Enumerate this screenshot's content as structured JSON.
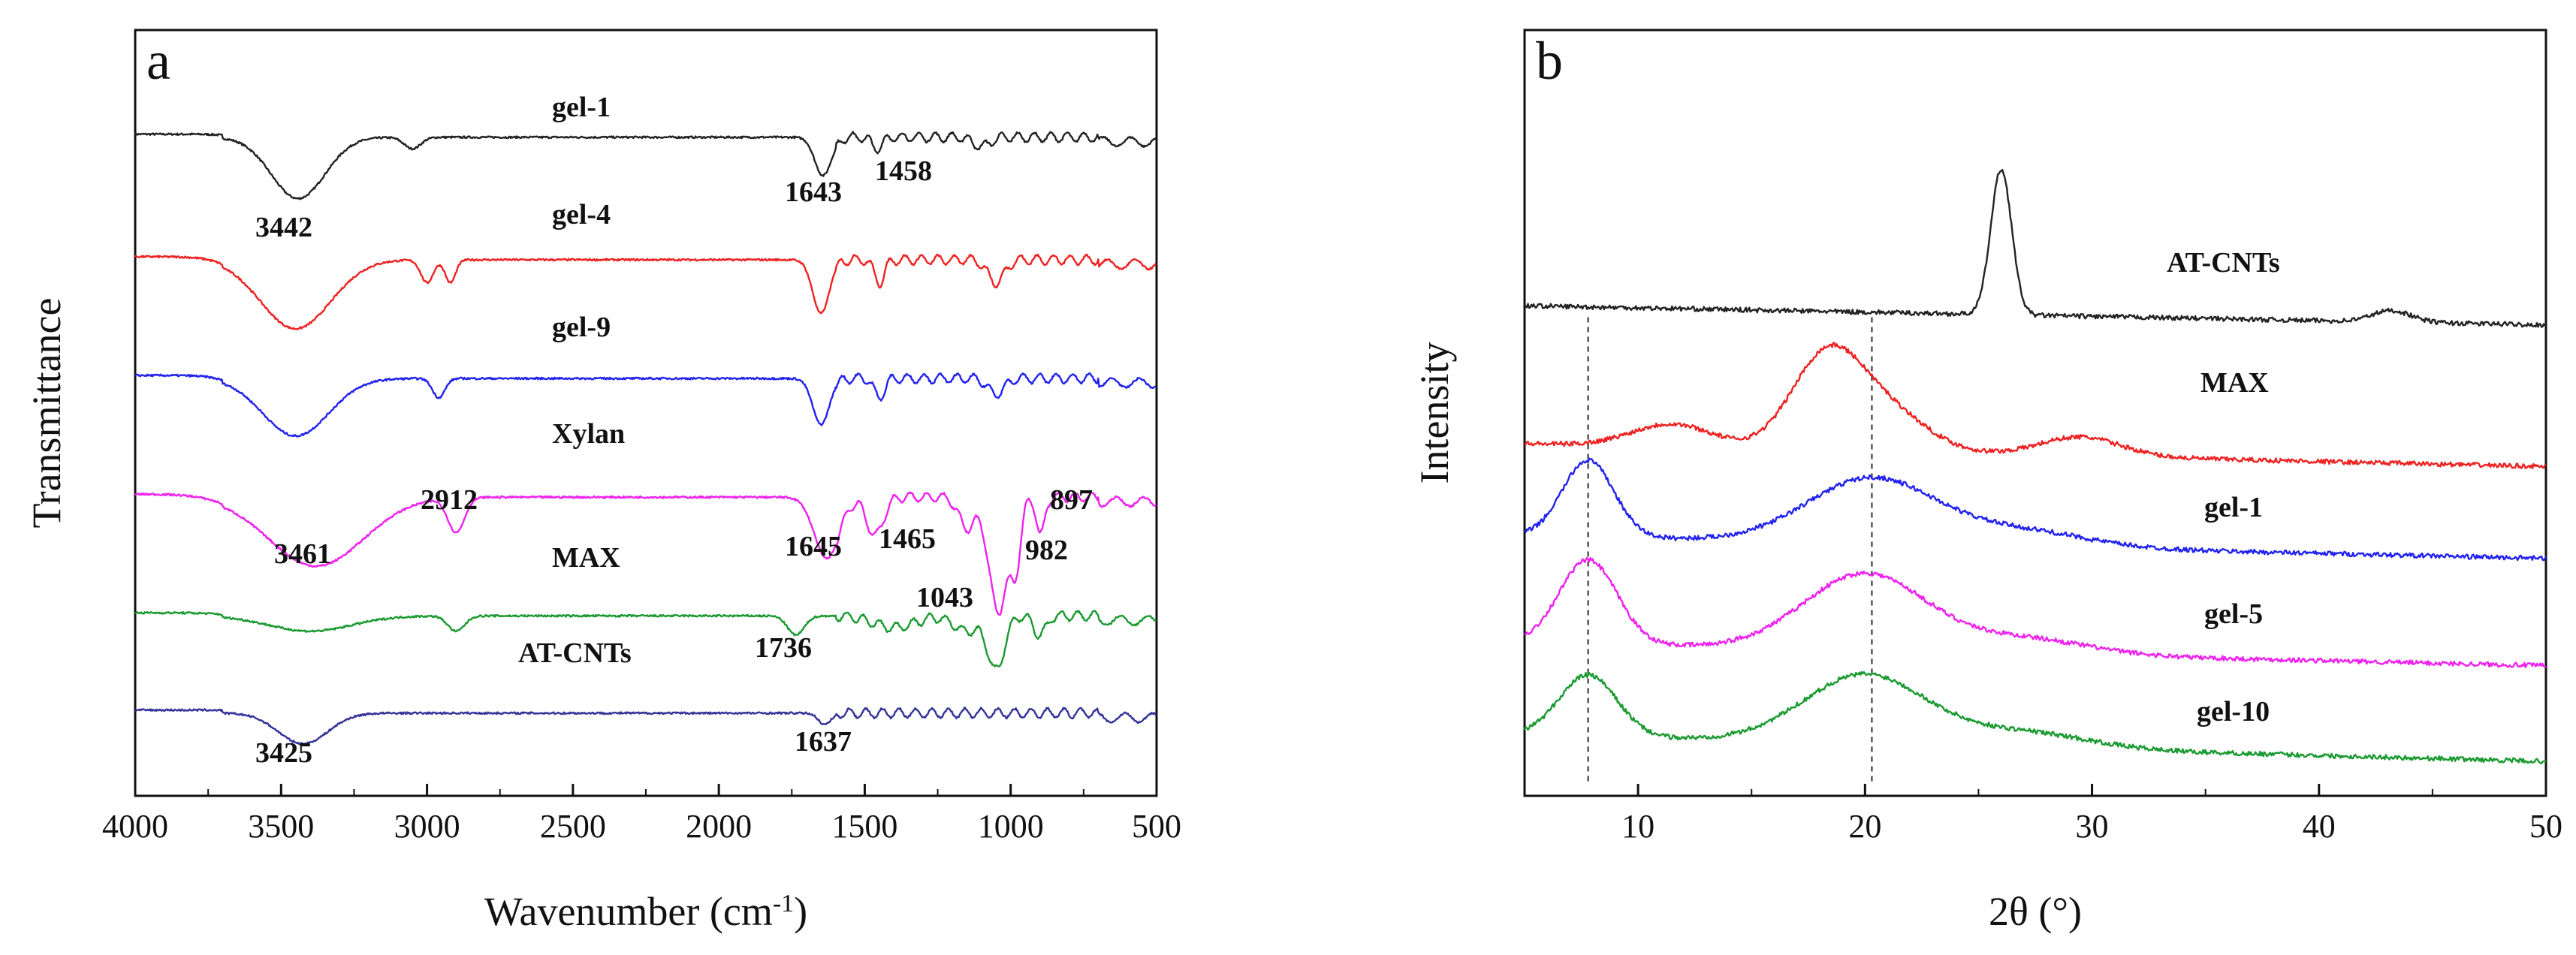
{
  "chart_data": [
    {
      "panel": "a",
      "type": "line",
      "xlabel_main": "Wavenumber (cm",
      "xlabel_sup": "-1",
      "xlabel_close": ")",
      "ylabel": "Transmittance",
      "xlim": [
        4000,
        500
      ],
      "xticks": [
        "4000",
        "3500",
        "3000",
        "2500",
        "2000",
        "1500",
        "1000",
        "500"
      ],
      "xtick_values": [
        4000,
        3500,
        3000,
        2500,
        2000,
        1500,
        1000,
        500
      ],
      "series": [
        {
          "name": "gel-1",
          "color": "#222222",
          "offset": 0.86,
          "peaks": [
            [
              3442,
              0.08,
              130
            ],
            [
              3050,
              0.015,
              40
            ],
            [
              1643,
              0.05,
              40
            ],
            [
              1458,
              0.015,
              25
            ],
            [
              1100,
              0.012,
              40
            ]
          ],
          "edge": [
            3700,
            0.0
          ]
        },
        {
          "name": "gel-4",
          "color": "#ee2222",
          "offset": 0.7,
          "peaks": [
            [
              3450,
              0.09,
              170
            ],
            [
              3000,
              0.03,
              30
            ],
            [
              2920,
              0.03,
              25
            ],
            [
              1650,
              0.07,
              40
            ],
            [
              1450,
              0.03,
              25
            ],
            [
              1050,
              0.03,
              40
            ]
          ],
          "edge": [
            3700,
            0.0
          ]
        },
        {
          "name": "gel-9",
          "color": "#2222ee",
          "offset": 0.545,
          "peaks": [
            [
              3450,
              0.075,
              160
            ],
            [
              2960,
              0.025,
              30
            ],
            [
              1650,
              0.06,
              40
            ],
            [
              1450,
              0.025,
              25
            ],
            [
              1050,
              0.02,
              40
            ]
          ],
          "edge": [
            3700,
            0.0
          ]
        },
        {
          "name": "Xylan",
          "color": "#ee22ee",
          "offset": 0.39,
          "peaks": [
            [
              3380,
              0.09,
              230
            ],
            [
              2900,
              0.045,
              40
            ],
            [
              1630,
              0.08,
              60
            ],
            [
              1465,
              0.05,
              40
            ],
            [
              1150,
              0.04,
              40
            ],
            [
              1043,
              0.15,
              45
            ],
            [
              982,
              0.08,
              25
            ],
            [
              897,
              0.05,
              20
            ]
          ],
          "edge": [
            3700,
            0.0
          ]
        },
        {
          "name": "MAX",
          "color": "#1a9a30",
          "offset": 0.235,
          "peaks": [
            [
              3400,
              0.02,
              200
            ],
            [
              2900,
              0.02,
              40
            ],
            [
              1736,
              0.025,
              40
            ],
            [
              1400,
              0.015,
              100
            ],
            [
              1150,
              0.02,
              60
            ],
            [
              1050,
              0.07,
              40
            ],
            [
              900,
              0.025,
              30
            ]
          ],
          "edge": [
            3700,
            0.0
          ]
        },
        {
          "name": "AT-CNTs",
          "color": "#333399",
          "offset": 0.108,
          "peaks": [
            [
              3425,
              0.04,
              120
            ],
            [
              1637,
              0.015,
              30
            ]
          ],
          "edge": [
            3700,
            0.0
          ]
        }
      ],
      "series_labels": [
        "gel-1",
        "gel-4",
        "gel-9",
        "Xylan",
        "MAX",
        "AT-CNTs"
      ],
      "peak_labels": [
        "3442",
        "1643",
        "1458",
        "3461",
        "2912",
        "1645",
        "1465",
        "897",
        "982",
        "1043",
        "1736",
        "3425",
        "1637"
      ]
    },
    {
      "panel": "b",
      "type": "line",
      "xlabel": "2θ (°)",
      "ylabel": "Intensity",
      "xlim": [
        5,
        50
      ],
      "xticks": [
        "10",
        "20",
        "30",
        "40",
        "50"
      ],
      "xtick_values": [
        10,
        20,
        30,
        40,
        50
      ],
      "reference_lines": [
        7.8,
        20.3
      ],
      "series": [
        {
          "name": "AT-CNTs",
          "color": "#222222",
          "base": [
            0.64,
            0.615
          ],
          "peaks": [
            [
              26.0,
              0.19,
              0.65
            ],
            [
              43.2,
              0.015,
              1.2
            ]
          ]
        },
        {
          "name": "MAX",
          "color": "#ee2222",
          "base": [
            0.46,
            0.43
          ],
          "peaks": [
            [
              11.5,
              0.03,
              2.5
            ],
            [
              18.3,
              0.12,
              2.2
            ],
            [
              21.0,
              0.05,
              2.5
            ],
            [
              29.5,
              0.025,
              2.5
            ]
          ]
        },
        {
          "name": "gel-1",
          "color": "#2222ee",
          "base": [
            0.34,
            0.31
          ],
          "peaks": [
            [
              7.8,
              0.1,
              1.6
            ],
            [
              20.3,
              0.085,
              4.0
            ],
            [
              27,
              0.02,
              4
            ]
          ]
        },
        {
          "name": "gel-5",
          "color": "#ee22ee",
          "base": [
            0.2,
            0.17
          ],
          "peaks": [
            [
              7.8,
              0.11,
              1.8
            ],
            [
              20.0,
              0.1,
              3.8
            ],
            [
              27,
              0.02,
              4
            ]
          ]
        },
        {
          "name": "gel-10",
          "color": "#1a9a30",
          "base": [
            0.08,
            0.045
          ],
          "peaks": [
            [
              7.8,
              0.08,
              1.8
            ],
            [
              20.0,
              0.09,
              3.8
            ],
            [
              27,
              0.02,
              4
            ]
          ]
        }
      ],
      "series_labels": [
        "AT-CNTs",
        "MAX",
        "gel-1",
        "gel-5",
        "gel-10"
      ]
    }
  ]
}
